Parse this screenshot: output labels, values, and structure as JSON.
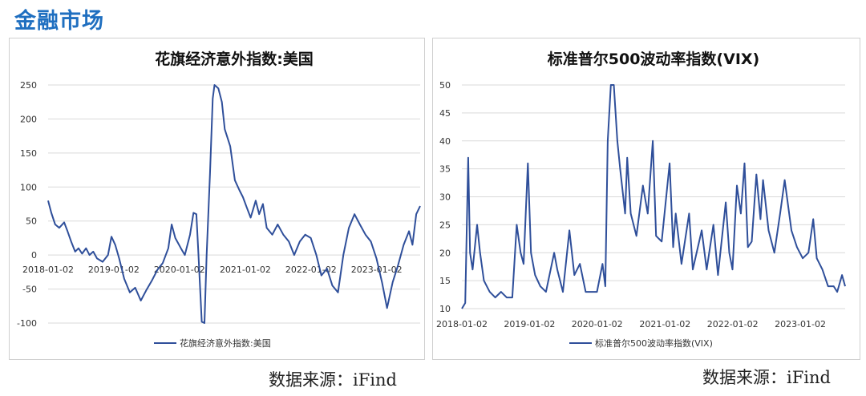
{
  "page": {
    "section_title": "金融市场",
    "accent_color": "#1f6fc0",
    "series_color": "#2f4f9a"
  },
  "chart_data": [
    {
      "id": "citi",
      "type": "line",
      "title": "花旗经济意外指数:美国",
      "legend": [
        "花旗经济意外指数:美国"
      ],
      "legend_placement": "bottom",
      "grid": true,
      "ylim": [
        -100,
        250
      ],
      "yticks": [
        -100,
        -50,
        0,
        50,
        100,
        150,
        200,
        250
      ],
      "xticks": [
        "2018-01-02",
        "2019-01-02",
        "2020-01-02",
        "2021-01-02",
        "2022-01-02",
        "2023-01-02"
      ],
      "xlim": [
        "2018-01-02",
        "2023-09-01"
      ],
      "source": "数据来源：iFind",
      "series": [
        {
          "name": "花旗经济意外指数:美国",
          "points": [
            [
              "2018-01-02",
              80
            ],
            [
              "2018-01-20",
              62
            ],
            [
              "2018-02-10",
              45
            ],
            [
              "2018-03-05",
              40
            ],
            [
              "2018-04-01",
              48
            ],
            [
              "2018-04-20",
              35
            ],
            [
              "2018-05-10",
              20
            ],
            [
              "2018-06-01",
              5
            ],
            [
              "2018-06-20",
              10
            ],
            [
              "2018-07-10",
              2
            ],
            [
              "2018-08-01",
              10
            ],
            [
              "2018-08-20",
              0
            ],
            [
              "2018-09-10",
              5
            ],
            [
              "2018-10-01",
              -5
            ],
            [
              "2018-11-01",
              -10
            ],
            [
              "2018-12-01",
              0
            ],
            [
              "2018-12-20",
              27
            ],
            [
              "2019-01-10",
              15
            ],
            [
              "2019-02-01",
              -5
            ],
            [
              "2019-03-01",
              -35
            ],
            [
              "2019-04-01",
              -55
            ],
            [
              "2019-05-01",
              -48
            ],
            [
              "2019-06-01",
              -67
            ],
            [
              "2019-07-01",
              -52
            ],
            [
              "2019-08-01",
              -38
            ],
            [
              "2019-09-01",
              -22
            ],
            [
              "2019-10-01",
              -12
            ],
            [
              "2019-11-01",
              10
            ],
            [
              "2019-11-20",
              45
            ],
            [
              "2019-12-10",
              25
            ],
            [
              "2020-01-10",
              10
            ],
            [
              "2020-02-01",
              0
            ],
            [
              "2020-03-01",
              30
            ],
            [
              "2020-03-20",
              62
            ],
            [
              "2020-04-05",
              60
            ],
            [
              "2020-04-15",
              10
            ],
            [
              "2020-04-25",
              -45
            ],
            [
              "2020-05-05",
              -98
            ],
            [
              "2020-05-20",
              -100
            ],
            [
              "2020-06-01",
              0
            ],
            [
              "2020-06-20",
              120
            ],
            [
              "2020-07-05",
              230
            ],
            [
              "2020-07-15",
              250
            ],
            [
              "2020-08-05",
              245
            ],
            [
              "2020-08-25",
              225
            ],
            [
              "2020-09-10",
              185
            ],
            [
              "2020-10-10",
              160
            ],
            [
              "2020-11-05",
              110
            ],
            [
              "2020-12-01",
              95
            ],
            [
              "2020-12-20",
              85
            ],
            [
              "2021-01-10",
              70
            ],
            [
              "2021-02-01",
              55
            ],
            [
              "2021-03-01",
              80
            ],
            [
              "2021-03-20",
              60
            ],
            [
              "2021-04-10",
              75
            ],
            [
              "2021-05-01",
              40
            ],
            [
              "2021-06-01",
              30
            ],
            [
              "2021-07-01",
              45
            ],
            [
              "2021-08-01",
              30
            ],
            [
              "2021-09-01",
              20
            ],
            [
              "2021-10-01",
              0
            ],
            [
              "2021-11-01",
              20
            ],
            [
              "2021-12-01",
              30
            ],
            [
              "2022-01-01",
              25
            ],
            [
              "2022-02-01",
              0
            ],
            [
              "2022-03-01",
              -30
            ],
            [
              "2022-04-01",
              -20
            ],
            [
              "2022-05-01",
              -45
            ],
            [
              "2022-06-01",
              -55
            ],
            [
              "2022-07-01",
              0
            ],
            [
              "2022-08-01",
              40
            ],
            [
              "2022-09-01",
              60
            ],
            [
              "2022-10-01",
              45
            ],
            [
              "2022-11-01",
              30
            ],
            [
              "2022-12-01",
              20
            ],
            [
              "2023-01-01",
              -5
            ],
            [
              "2023-02-01",
              -40
            ],
            [
              "2023-03-01",
              -78
            ],
            [
              "2023-04-01",
              -40
            ],
            [
              "2023-05-01",
              -15
            ],
            [
              "2023-06-01",
              15
            ],
            [
              "2023-07-01",
              35
            ],
            [
              "2023-07-20",
              15
            ],
            [
              "2023-08-10",
              60
            ],
            [
              "2023-09-01",
              72
            ]
          ]
        }
      ]
    },
    {
      "id": "vix",
      "type": "line",
      "title": "标准普尔500波动率指数(VIX)",
      "legend": [
        "标准普尔500波动率指数(VIX)"
      ],
      "legend_placement": "bottom",
      "grid": true,
      "ylim": [
        10,
        50
      ],
      "yticks": [
        10,
        15,
        20,
        25,
        30,
        35,
        40,
        45,
        50
      ],
      "xticks": [
        "2018-01-02",
        "2019-01-02",
        "2020-01-02",
        "2021-01-02",
        "2022-01-02",
        "2023-01-02"
      ],
      "xlim": [
        "2018-01-02",
        "2023-09-01"
      ],
      "source": "数据来源：iFind",
      "series": [
        {
          "name": "标准普尔500波动率指数(VIX)",
          "points": [
            [
              "2018-01-02",
              10
            ],
            [
              "2018-01-20",
              11
            ],
            [
              "2018-02-05",
              37
            ],
            [
              "2018-02-15",
              20
            ],
            [
              "2018-03-01",
              17
            ],
            [
              "2018-03-25",
              25
            ],
            [
              "2018-04-10",
              20
            ],
            [
              "2018-05-01",
              15
            ],
            [
              "2018-06-01",
              13
            ],
            [
              "2018-07-01",
              12
            ],
            [
              "2018-08-01",
              13
            ],
            [
              "2018-09-01",
              12
            ],
            [
              "2018-10-01",
              12
            ],
            [
              "2018-10-25",
              25
            ],
            [
              "2018-11-15",
              20
            ],
            [
              "2018-12-01",
              18
            ],
            [
              "2018-12-24",
              36
            ],
            [
              "2019-01-10",
              20
            ],
            [
              "2019-02-01",
              16
            ],
            [
              "2019-03-01",
              14
            ],
            [
              "2019-04-01",
              13
            ],
            [
              "2019-05-15",
              20
            ],
            [
              "2019-06-01",
              17
            ],
            [
              "2019-07-01",
              13
            ],
            [
              "2019-08-05",
              24
            ],
            [
              "2019-09-01",
              16
            ],
            [
              "2019-10-01",
              18
            ],
            [
              "2019-11-01",
              13
            ],
            [
              "2019-12-01",
              13
            ],
            [
              "2020-01-01",
              13
            ],
            [
              "2020-01-31",
              18
            ],
            [
              "2020-02-15",
              14
            ],
            [
              "2020-02-28",
              40
            ],
            [
              "2020-03-16",
              50
            ],
            [
              "2020-04-01",
              50
            ],
            [
              "2020-04-20",
              40
            ],
            [
              "2020-05-05",
              35
            ],
            [
              "2020-06-01",
              27
            ],
            [
              "2020-06-12",
              37
            ],
            [
              "2020-07-01",
              27
            ],
            [
              "2020-08-01",
              23
            ],
            [
              "2020-09-05",
              32
            ],
            [
              "2020-10-01",
              27
            ],
            [
              "2020-10-28",
              40
            ],
            [
              "2020-11-15",
              23
            ],
            [
              "2020-12-15",
              22
            ],
            [
              "2021-01-27",
              36
            ],
            [
              "2021-02-15",
              21
            ],
            [
              "2021-03-01",
              27
            ],
            [
              "2021-04-01",
              18
            ],
            [
              "2021-05-12",
              27
            ],
            [
              "2021-06-01",
              17
            ],
            [
              "2021-07-19",
              24
            ],
            [
              "2021-08-15",
              17
            ],
            [
              "2021-09-20",
              25
            ],
            [
              "2021-10-15",
              16
            ],
            [
              "2021-11-26",
              29
            ],
            [
              "2021-12-15",
              20
            ],
            [
              "2022-01-01",
              17
            ],
            [
              "2022-01-25",
              32
            ],
            [
              "2022-02-15",
              27
            ],
            [
              "2022-03-07",
              36
            ],
            [
              "2022-03-25",
              21
            ],
            [
              "2022-04-15",
              22
            ],
            [
              "2022-05-10",
              34
            ],
            [
              "2022-06-01",
              26
            ],
            [
              "2022-06-15",
              33
            ],
            [
              "2022-07-15",
              24
            ],
            [
              "2022-08-15",
              20
            ],
            [
              "2022-09-15",
              27
            ],
            [
              "2022-10-10",
              33
            ],
            [
              "2022-11-15",
              24
            ],
            [
              "2022-12-15",
              21
            ],
            [
              "2023-01-15",
              19
            ],
            [
              "2023-02-15",
              20
            ],
            [
              "2023-03-13",
              26
            ],
            [
              "2023-04-01",
              19
            ],
            [
              "2023-05-01",
              17
            ],
            [
              "2023-06-01",
              14
            ],
            [
              "2023-07-01",
              14
            ],
            [
              "2023-07-20",
              13
            ],
            [
              "2023-08-15",
              16
            ],
            [
              "2023-09-01",
              14
            ]
          ]
        }
      ]
    }
  ]
}
